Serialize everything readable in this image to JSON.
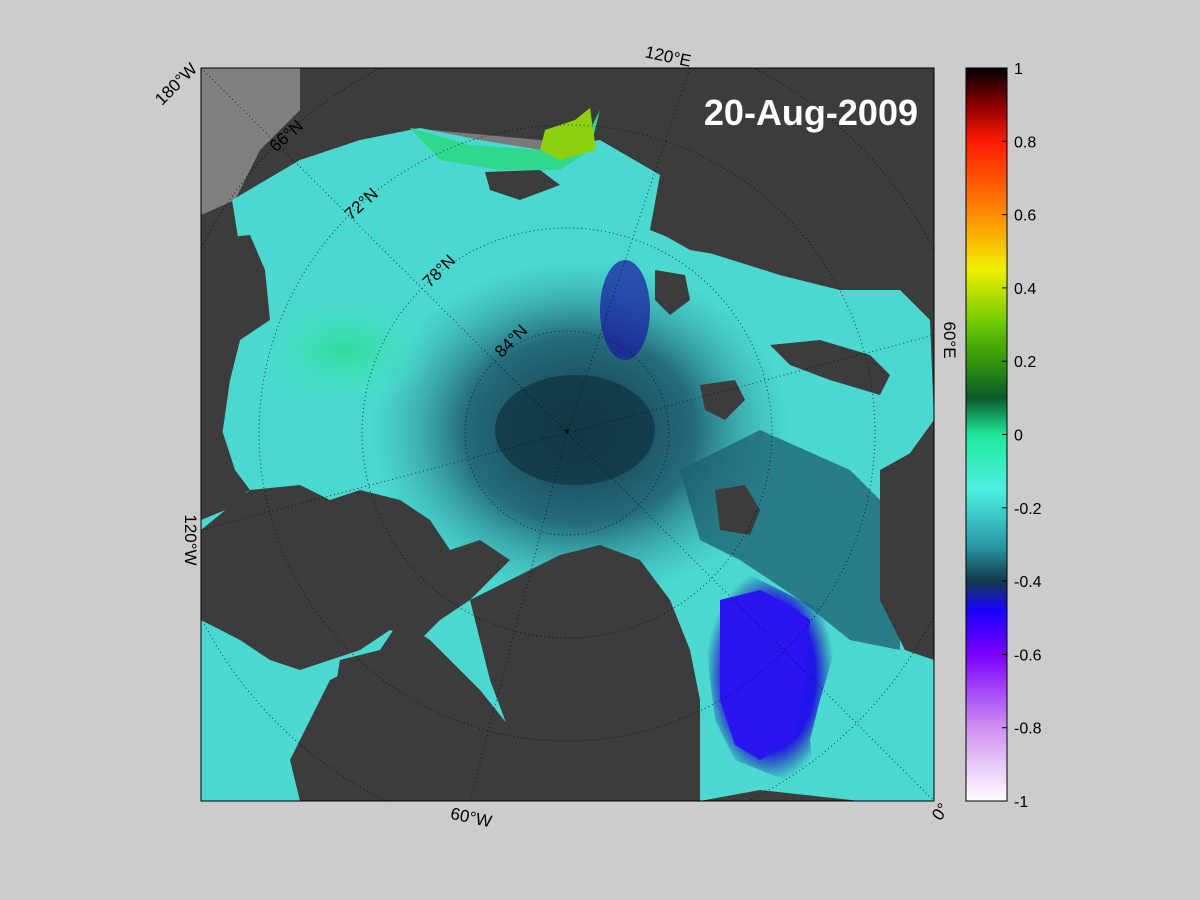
{
  "map": {
    "date_title": "20-Aug-2009",
    "longitude_labels": {
      "lon_180w": "180°W",
      "lon_120e": "120°E",
      "lon_60e": "60°E",
      "lon_0": "0°",
      "lon_60w": "60°W",
      "lon_120w": "120°W"
    },
    "latitude_labels": {
      "lat_66n": "66°N",
      "lat_72n": "72°N",
      "lat_78n": "78°N",
      "lat_84n": "84°N"
    },
    "colors": {
      "land": "#3c3c3c",
      "missing": "#808080",
      "background": "#cccccc"
    }
  },
  "colorbar": {
    "range": [
      -1,
      1
    ],
    "ticks": [
      {
        "value": 1,
        "label": "1"
      },
      {
        "value": 0.8,
        "label": "0.8"
      },
      {
        "value": 0.6,
        "label": "0.6"
      },
      {
        "value": 0.4,
        "label": "0.4"
      },
      {
        "value": 0.2,
        "label": "0.2"
      },
      {
        "value": 0,
        "label": "0"
      },
      {
        "value": -0.2,
        "label": "-0.2"
      },
      {
        "value": -0.4,
        "label": "-0.4"
      },
      {
        "value": -0.6,
        "label": "-0.6"
      },
      {
        "value": -0.8,
        "label": "-0.8"
      },
      {
        "value": -1,
        "label": "-1"
      }
    ],
    "colormap": [
      {
        "value": 1.0,
        "color": "#000000"
      },
      {
        "value": 0.9,
        "color": "#8a0000"
      },
      {
        "value": 0.8,
        "color": "#ff1a00"
      },
      {
        "value": 0.6,
        "color": "#ff8c00"
      },
      {
        "value": 0.45,
        "color": "#f0f000"
      },
      {
        "value": 0.3,
        "color": "#6ac800"
      },
      {
        "value": 0.18,
        "color": "#2a8a10"
      },
      {
        "value": 0.1,
        "color": "#0a5a2a"
      },
      {
        "value": 0.0,
        "color": "#1ee89a"
      },
      {
        "value": -0.15,
        "color": "#4ef0e0"
      },
      {
        "value": -0.3,
        "color": "#2a9aa8"
      },
      {
        "value": -0.4,
        "color": "#123a4a"
      },
      {
        "value": -0.48,
        "color": "#1800ff"
      },
      {
        "value": -0.6,
        "color": "#7a00ff"
      },
      {
        "value": -0.8,
        "color": "#cf90f0"
      },
      {
        "value": -1.0,
        "color": "#ffffff"
      }
    ]
  }
}
